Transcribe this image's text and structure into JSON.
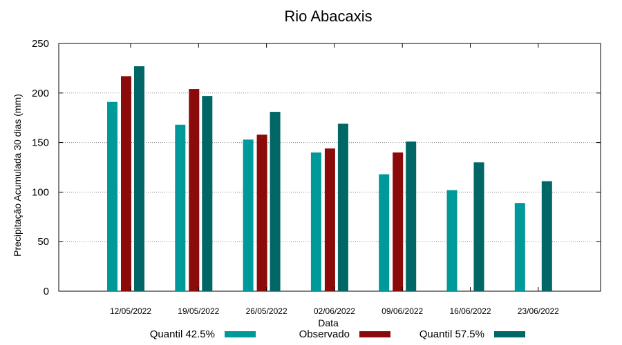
{
  "chart_data": {
    "type": "bar",
    "title": "Rio Abacaxis",
    "xlabel": "Data",
    "ylabel": "Precipitação Acumulada 30 dias (mm)",
    "ylim": [
      0,
      250
    ],
    "yticks": [
      0,
      50,
      100,
      150,
      200,
      250
    ],
    "grid": "horizontal dotted",
    "legend_position": "bottom",
    "categories": [
      "12/05/2022",
      "19/05/2022",
      "26/05/2022",
      "02/06/2022",
      "09/06/2022",
      "16/06/2022",
      "23/06/2022"
    ],
    "series": [
      {
        "name": "Quantil 42.5%",
        "color": "#009999",
        "values": [
          191,
          168,
          153,
          140,
          118,
          102,
          89
        ]
      },
      {
        "name": "Observado",
        "color": "#8b0a0a",
        "values": [
          217,
          204,
          158,
          144,
          140,
          null,
          null
        ]
      },
      {
        "name": "Quantil 57.5%",
        "color": "#006666",
        "values": [
          227,
          197,
          181,
          169,
          151,
          130,
          111
        ]
      }
    ]
  }
}
